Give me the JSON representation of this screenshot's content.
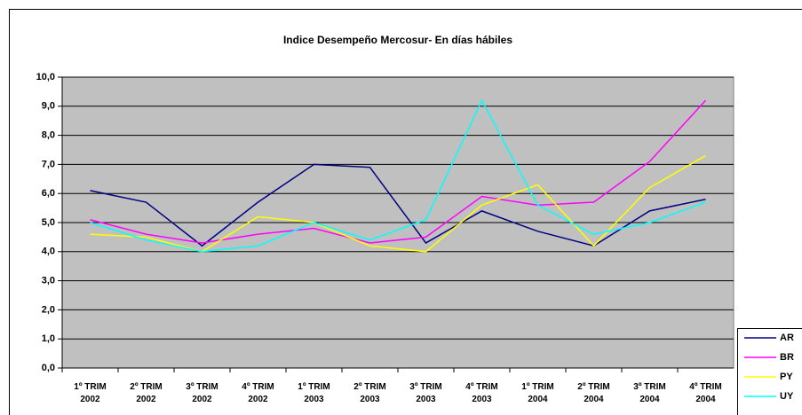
{
  "chart_data": {
    "type": "line",
    "title": "Indice Desempeño Mercosur- En días hábiles",
    "categories": [
      "1º TRIM 2002",
      "2º TRIM 2002",
      "3º TRIM 2002",
      "4º TRIM 2002",
      "1º TRIM 2003",
      "2º TRIM 2003",
      "3º TRIM 2003",
      "4º TRIM 2003",
      "1º TRIM 2004",
      "2º TRIM 2004",
      "3º TRIM 2004",
      "4º TRIM 2004"
    ],
    "series": [
      {
        "name": "AR",
        "color": "#000080",
        "values": [
          6.1,
          5.7,
          4.2,
          5.7,
          7.0,
          6.9,
          4.3,
          5.4,
          4.7,
          4.2,
          5.4,
          5.8
        ]
      },
      {
        "name": "BR",
        "color": "#ff00ff",
        "values": [
          5.1,
          4.6,
          4.3,
          4.6,
          4.8,
          4.3,
          4.5,
          5.9,
          5.6,
          5.7,
          7.1,
          9.2
        ]
      },
      {
        "name": "PY",
        "color": "#ffff00",
        "values": [
          4.6,
          4.5,
          4.0,
          5.2,
          5.0,
          4.2,
          4.0,
          5.6,
          6.3,
          4.2,
          6.2,
          7.3
        ]
      },
      {
        "name": "UY",
        "color": "#00ffff",
        "values": [
          5.0,
          4.4,
          4.0,
          4.2,
          5.0,
          4.4,
          5.1,
          9.2,
          5.6,
          4.6,
          5.0,
          5.7
        ]
      }
    ],
    "ylim": [
      0,
      10
    ],
    "yticks": [
      {
        "value": 0,
        "label": "0,0"
      },
      {
        "value": 1,
        "label": "1,0"
      },
      {
        "value": 2,
        "label": "2,0"
      },
      {
        "value": 3,
        "label": "3,0"
      },
      {
        "value": 4,
        "label": "4,0"
      },
      {
        "value": 5,
        "label": "5,0"
      },
      {
        "value": 6,
        "label": "6,0"
      },
      {
        "value": 7,
        "label": "7,0"
      },
      {
        "value": 8,
        "label": "8,0"
      },
      {
        "value": 9,
        "label": "9,0"
      },
      {
        "value": 10,
        "label": "10,0"
      }
    ],
    "grid": true,
    "legend": "right"
  }
}
